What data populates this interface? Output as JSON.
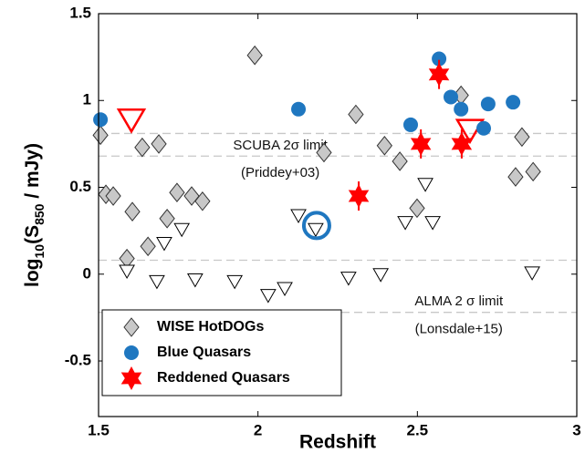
{
  "chart_data": {
    "type": "scatter",
    "xlabel": "Redshift",
    "ylabel": [
      "log",
      "10",
      "(S",
      "850",
      " / mJy)"
    ],
    "xlim": [
      1.5,
      3
    ],
    "ylim": [
      -0.82,
      1.5
    ],
    "xticks": [
      1.5,
      2,
      2.5,
      3
    ],
    "yticks": [
      -0.5,
      0,
      0.5,
      1,
      1.5
    ],
    "hlines": [
      0.81,
      0.68,
      0.08,
      -0.22
    ],
    "annotations": [
      {
        "text": "SCUBA 2σ limit",
        "x": 2.07,
        "y": 0.74
      },
      {
        "text": "(Priddey+03)",
        "x": 2.07,
        "y": 0.58
      },
      {
        "text": "ALMA 2 σ limit",
        "x": 2.63,
        "y": -0.16
      },
      {
        "text": "(Lonsdale+15)",
        "x": 2.63,
        "y": -0.32
      }
    ],
    "legend": "lower left",
    "series": [
      {
        "name": "WISE HotDOGs",
        "marker": "diamond",
        "color": "#c8c8c8",
        "x": [
          1.506,
          1.523,
          1.546,
          1.589,
          1.606,
          1.637,
          1.655,
          1.689,
          1.715,
          1.746,
          1.792,
          1.826,
          1.99,
          2.207,
          2.307,
          2.397,
          2.445,
          2.499,
          2.637,
          2.808,
          2.828,
          2.863
        ],
        "y": [
          0.8,
          0.46,
          0.45,
          0.09,
          0.36,
          0.73,
          0.16,
          0.75,
          0.32,
          0.47,
          0.45,
          0.42,
          1.26,
          0.7,
          0.92,
          0.74,
          0.65,
          0.38,
          1.03,
          0.56,
          0.79,
          0.59
        ]
      },
      {
        "marker": "triangle-down",
        "color": "#000000",
        "x": [
          1.589,
          1.683,
          1.706,
          1.761,
          1.803,
          1.927,
          2.032,
          2.084,
          2.127,
          2.181,
          2.284,
          2.385,
          2.462,
          2.525,
          2.548,
          2.86
        ],
        "y": [
          0.02,
          -0.04,
          0.18,
          0.26,
          -0.03,
          -0.04,
          -0.12,
          -0.08,
          0.34,
          0.26,
          -0.02,
          0.0,
          0.3,
          0.52,
          0.3,
          0.01
        ]
      },
      {
        "marker": "triangle-down-large",
        "color": "#ff0000",
        "x": [
          1.603,
          2.665
        ],
        "y": [
          0.89,
          0.83
        ]
      },
      {
        "name": "Blue Quasars",
        "marker": "circle",
        "color": "#1f77c0",
        "x": [
          1.506,
          2.127,
          2.479,
          2.568,
          2.605,
          2.637,
          2.708,
          2.722,
          2.8
        ],
        "y": [
          0.89,
          0.95,
          0.86,
          1.24,
          1.02,
          0.95,
          0.84,
          0.98,
          0.99
        ]
      },
      {
        "marker": "ring",
        "color": "#1f77c0",
        "x": [
          2.184
        ],
        "y": [
          0.28
        ]
      },
      {
        "name": "Reddened Quasars",
        "marker": "star",
        "color": "#ff0000",
        "x": [
          2.316,
          2.511,
          2.568,
          2.639
        ],
        "y": [
          0.45,
          0.75,
          1.15,
          0.75
        ]
      }
    ]
  }
}
